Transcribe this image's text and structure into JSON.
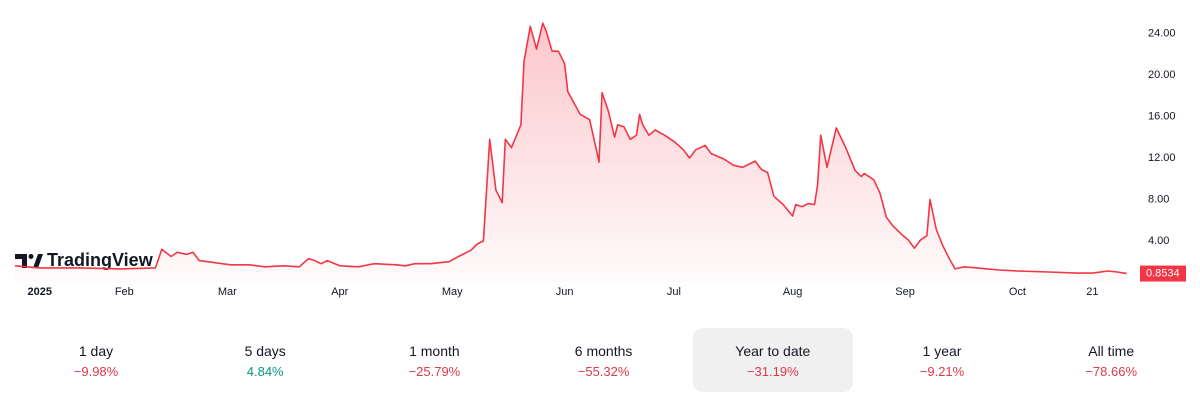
{
  "chart_data": {
    "type": "area",
    "brand": "TradingView",
    "color": "#f23645",
    "x": [
      -4,
      4,
      17,
      30,
      41,
      43,
      46,
      48,
      51,
      53,
      55,
      60,
      65,
      71,
      76,
      82,
      87,
      90,
      92,
      94,
      96,
      100,
      106,
      111,
      118,
      121,
      124,
      129,
      135,
      138,
      142,
      144,
      146,
      148,
      150,
      152,
      153,
      155,
      158,
      159,
      161,
      163,
      165,
      166,
      168,
      170,
      172,
      173,
      175,
      177,
      180,
      182,
      183,
      184,
      186,
      188,
      189,
      191,
      193,
      195,
      196,
      197,
      199,
      201,
      204,
      207,
      210,
      212,
      214,
      217,
      219,
      223,
      226,
      229,
      233,
      235,
      237,
      239,
      242,
      245,
      246,
      248,
      250,
      252,
      253,
      254,
      256,
      259,
      262,
      265,
      267,
      268,
      271,
      273,
      275,
      277,
      280,
      282,
      284,
      286,
      288,
      289,
      291,
      293,
      295,
      297,
      300,
      304,
      311,
      317,
      327,
      336,
      341,
      346,
      349,
      352
    ],
    "values": [
      1.6,
      1.4,
      1.4,
      1.3,
      1.4,
      3.2,
      2.5,
      2.9,
      2.7,
      2.9,
      2.1,
      1.9,
      1.7,
      1.7,
      1.5,
      1.6,
      1.5,
      2.3,
      2.1,
      1.8,
      2.1,
      1.6,
      1.5,
      1.8,
      1.7,
      1.6,
      1.8,
      1.8,
      2.0,
      2.5,
      3.1,
      3.7,
      4.0,
      13.8,
      8.9,
      7.7,
      13.8,
      13.0,
      15.2,
      21.3,
      24.7,
      22.5,
      25.0,
      24.3,
      22.3,
      22.3,
      21.1,
      18.4,
      17.3,
      16.2,
      15.7,
      13.0,
      11.6,
      18.3,
      16.5,
      14.0,
      15.2,
      15.0,
      13.8,
      14.2,
      16.2,
      15.2,
      14.2,
      14.7,
      14.2,
      13.6,
      12.8,
      12.0,
      12.8,
      13.2,
      12.4,
      11.9,
      11.3,
      11.1,
      11.7,
      10.9,
      10.6,
      8.3,
      7.5,
      6.4,
      7.5,
      7.3,
      7.6,
      7.5,
      9.4,
      14.2,
      11.1,
      14.9,
      13.0,
      10.8,
      10.2,
      10.5,
      9.9,
      8.6,
      6.3,
      5.5,
      4.6,
      4.1,
      3.3,
      4.1,
      4.5,
      8.0,
      5.1,
      3.6,
      2.4,
      1.3,
      1.5,
      1.4,
      1.2,
      1.1,
      1.0,
      0.9,
      0.9,
      1.1,
      1.0,
      0.8534
    ],
    "xlim": [
      -4,
      354
    ],
    "xticks": [
      {
        "value": 0,
        "label": "2025"
      },
      {
        "value": 31,
        "label": "Feb"
      },
      {
        "value": 64,
        "label": "Mar"
      },
      {
        "value": 100,
        "label": "Apr"
      },
      {
        "value": 136,
        "label": "May"
      },
      {
        "value": 172,
        "label": "Jun"
      },
      {
        "value": 207,
        "label": "Jul"
      },
      {
        "value": 245,
        "label": "Aug"
      },
      {
        "value": 281,
        "label": "Sep"
      },
      {
        "value": 317,
        "label": "Oct"
      },
      {
        "value": 341,
        "label": "21"
      }
    ],
    "ylim": [
      0,
      25.5
    ],
    "yticks": [
      {
        "value": 4,
        "label": "4.00"
      },
      {
        "value": 8,
        "label": "8.00"
      },
      {
        "value": 12,
        "label": "12.00"
      },
      {
        "value": 16,
        "label": "16.00"
      },
      {
        "value": 20,
        "label": "20.00"
      },
      {
        "value": 24,
        "label": "24.00"
      }
    ]
  },
  "periods": {
    "selected_index": 4,
    "items": [
      {
        "label": "1 day",
        "change": "−9.98%",
        "color": "#e0394a"
      },
      {
        "label": "5 days",
        "change": "4.84%",
        "color": "#089981"
      },
      {
        "label": "1 month",
        "change": "−25.79%",
        "color": "#e0394a"
      },
      {
        "label": "6 months",
        "change": "−55.32%",
        "color": "#e0394a"
      },
      {
        "label": "Year to date",
        "change": "−31.19%",
        "color": "#e0394a"
      },
      {
        "label": "1 year",
        "change": "−9.21%",
        "color": "#e0394a"
      },
      {
        "label": "All time",
        "change": "−78.66%",
        "color": "#e0394a"
      }
    ]
  }
}
